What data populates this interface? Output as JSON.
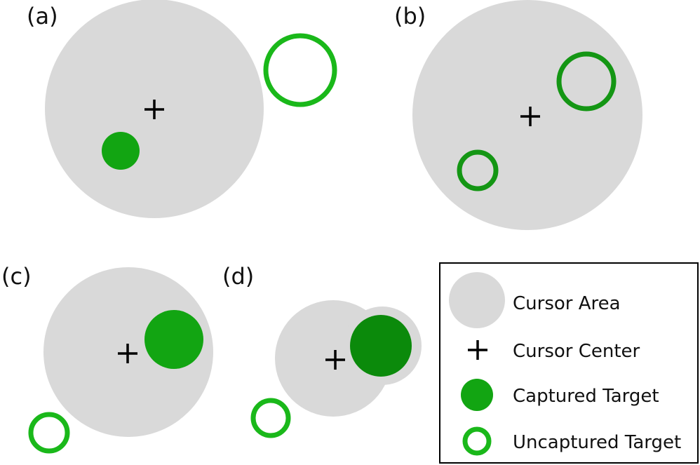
{
  "panels": {
    "a": {
      "label": "(a)"
    },
    "b": {
      "label": "(b)"
    },
    "c": {
      "label": "(c)"
    },
    "d": {
      "label": "(d)"
    }
  },
  "legend": {
    "cursor_area": "Cursor Area",
    "cursor_center": "Cursor Center",
    "captured_target": "Captured Target",
    "uncaptured_target": "Uncaptured Target"
  },
  "colors": {
    "cursor_area": "#d9d9d9",
    "captured_target_bright": "#12a512",
    "captured_target_dark": "#0b8a0b",
    "uncaptured_target": "#1ab81a",
    "uncaptured_target_dark": "#0f8f0f",
    "cursor_center": "#000000",
    "legend_border": "#000000"
  }
}
